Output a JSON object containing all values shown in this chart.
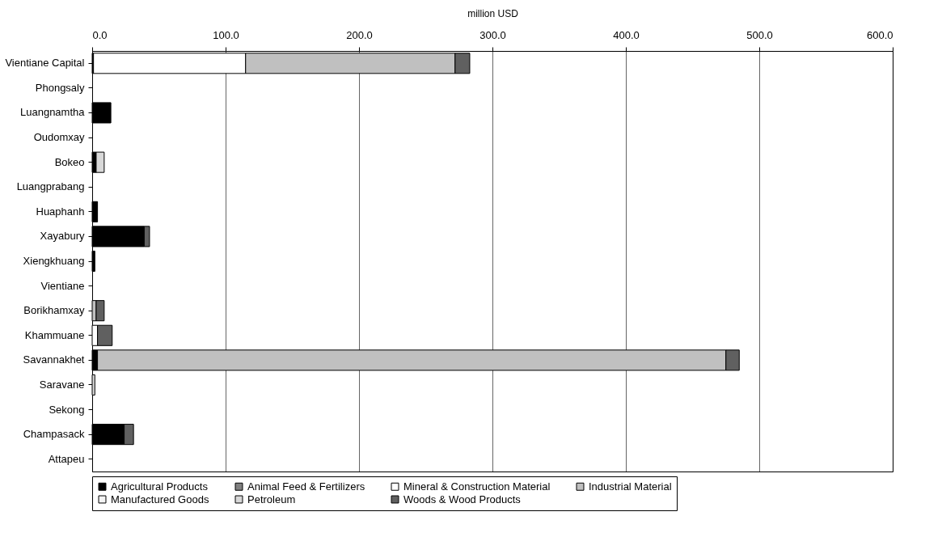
{
  "chart_data": {
    "type": "bar",
    "orientation": "horizontal",
    "stacked": true,
    "xlabel": "million USD",
    "categories": [
      "Vientiane Capital",
      "Phongsaly",
      "Luangnamtha",
      "Oudomxay",
      "Bokeo",
      "Luangprabang",
      "Huaphanh",
      "Xayabury",
      "Xiengkhuang",
      "Vientiane",
      "Borikhamxay",
      "Khammuane",
      "Savannakhet",
      "Saravane",
      "Sekong",
      "Champasack",
      "Attapeu"
    ],
    "series": [
      {
        "name": "Agricultural Products",
        "color": "#000000",
        "values": [
          1,
          null,
          14,
          null,
          3,
          null,
          4,
          39,
          2,
          null,
          null,
          null,
          4,
          null,
          null,
          24,
          null
        ]
      },
      {
        "name": "Animal Feed & Fertilizers",
        "color": "#808080",
        "values": [
          null,
          null,
          null,
          null,
          null,
          null,
          null,
          null,
          null,
          null,
          null,
          null,
          null,
          null,
          null,
          null,
          null
        ]
      },
      {
        "name": "Mineral & Construction Material",
        "color": "#ffffff",
        "values": [
          114,
          null,
          null,
          null,
          null,
          null,
          null,
          null,
          null,
          null,
          null,
          4,
          null,
          null,
          null,
          null,
          null
        ]
      },
      {
        "name": "Industrial Material",
        "color": "#c0c0c0",
        "values": [
          157,
          null,
          null,
          null,
          null,
          null,
          null,
          null,
          null,
          null,
          3,
          null,
          471,
          null,
          null,
          null,
          null
        ]
      },
      {
        "name": "Manufactured Goods",
        "color": "#f4f4f4",
        "values": [
          null,
          null,
          null,
          null,
          null,
          null,
          null,
          null,
          null,
          null,
          null,
          null,
          null,
          null,
          null,
          null,
          null
        ]
      },
      {
        "name": "Petroleum",
        "color": "#d8d8d8",
        "values": [
          null,
          null,
          null,
          null,
          6,
          null,
          null,
          null,
          null,
          null,
          null,
          null,
          null,
          2,
          null,
          null,
          null
        ]
      },
      {
        "name": "Woods & Wood Products",
        "color": "#606060",
        "values": [
          11,
          null,
          null,
          null,
          null,
          null,
          null,
          4,
          null,
          null,
          6,
          11,
          10,
          null,
          null,
          7,
          null
        ]
      }
    ],
    "xlim": [
      0,
      600
    ],
    "xticks": [
      {
        "value": 0,
        "label": "0.0"
      },
      {
        "value": 100,
        "label": "100.0"
      },
      {
        "value": 200,
        "label": "200.0"
      },
      {
        "value": 300,
        "label": "300.0"
      },
      {
        "value": 400,
        "label": "400.0"
      },
      {
        "value": 500,
        "label": "500.0"
      },
      {
        "value": 600,
        "label": "600.0"
      }
    ],
    "grid": "x",
    "legend": "bottom"
  }
}
